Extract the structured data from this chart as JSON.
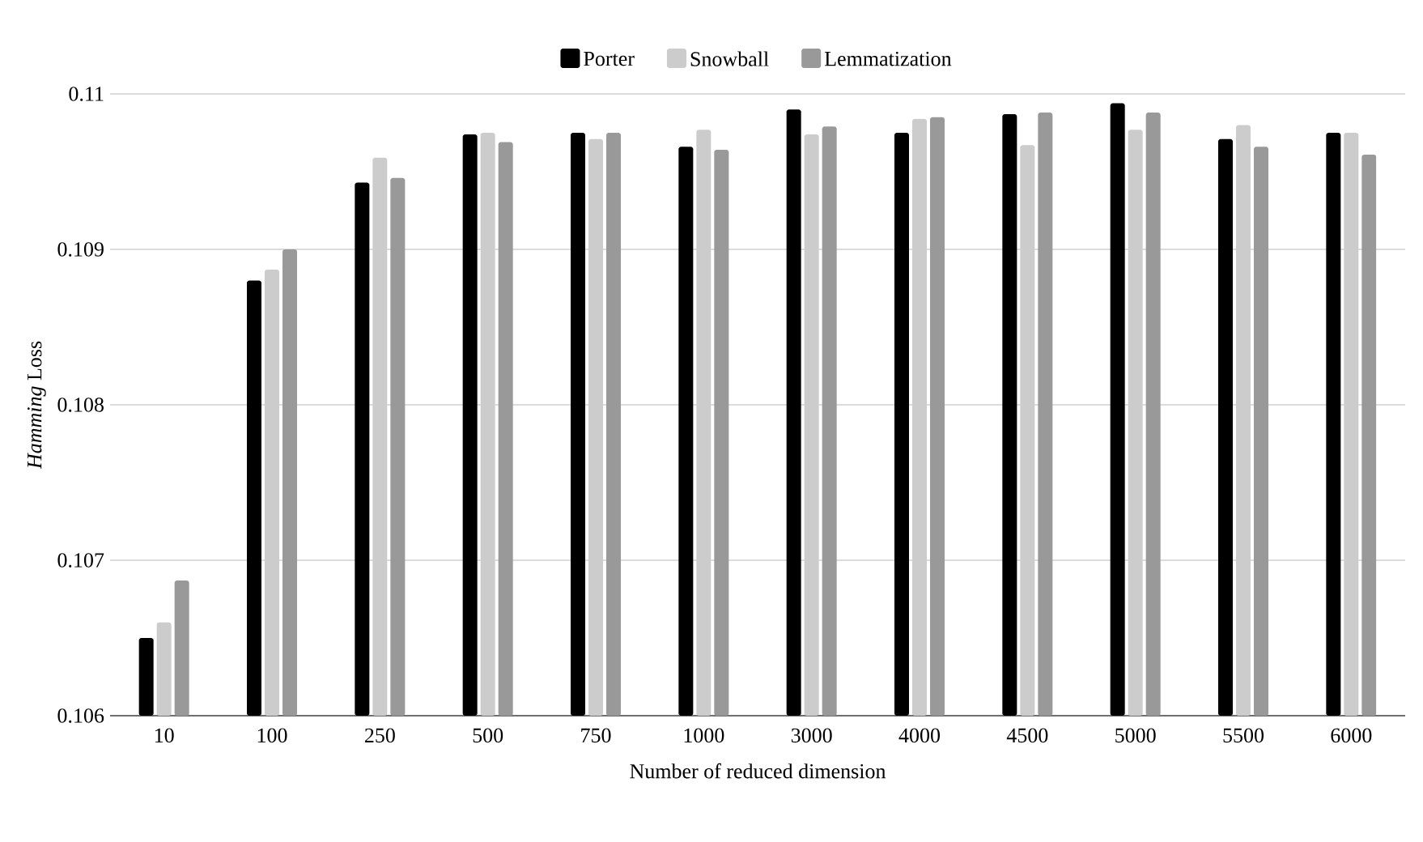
{
  "chart_data": {
    "type": "bar",
    "xlabel": "Number of reduced dimension",
    "ylabel": "*Hamming* Loss",
    "categories": [
      "10",
      "100",
      "250",
      "500",
      "750",
      "1000",
      "3000",
      "4000",
      "4500",
      "5000",
      "5500",
      "6000"
    ],
    "series": [
      {
        "name": "Porter",
        "color": "#000000",
        "values": [
          0.1065,
          0.1088,
          0.10943,
          0.10974,
          0.10975,
          0.10966,
          0.1099,
          0.10975,
          0.10987,
          0.10994,
          0.10971,
          0.10975
        ]
      },
      {
        "name": "Snowball",
        "color": "#cccccc",
        "values": [
          0.1066,
          0.10887,
          0.10959,
          0.10975,
          0.10971,
          0.10977,
          0.10974,
          0.10984,
          0.10967,
          0.10977,
          0.1098,
          0.10975
        ]
      },
      {
        "name": "Lemmatization",
        "color": "#999999",
        "values": [
          0.10687,
          0.109,
          0.10946,
          0.10969,
          0.10975,
          0.10964,
          0.10979,
          0.10985,
          0.10988,
          0.10988,
          0.10966,
          0.10961
        ]
      }
    ],
    "ylim": [
      0.106,
      0.11
    ],
    "yticks": [
      0.106,
      0.107,
      0.108,
      0.109,
      0.11
    ],
    "grid": "y",
    "legend": "top"
  }
}
